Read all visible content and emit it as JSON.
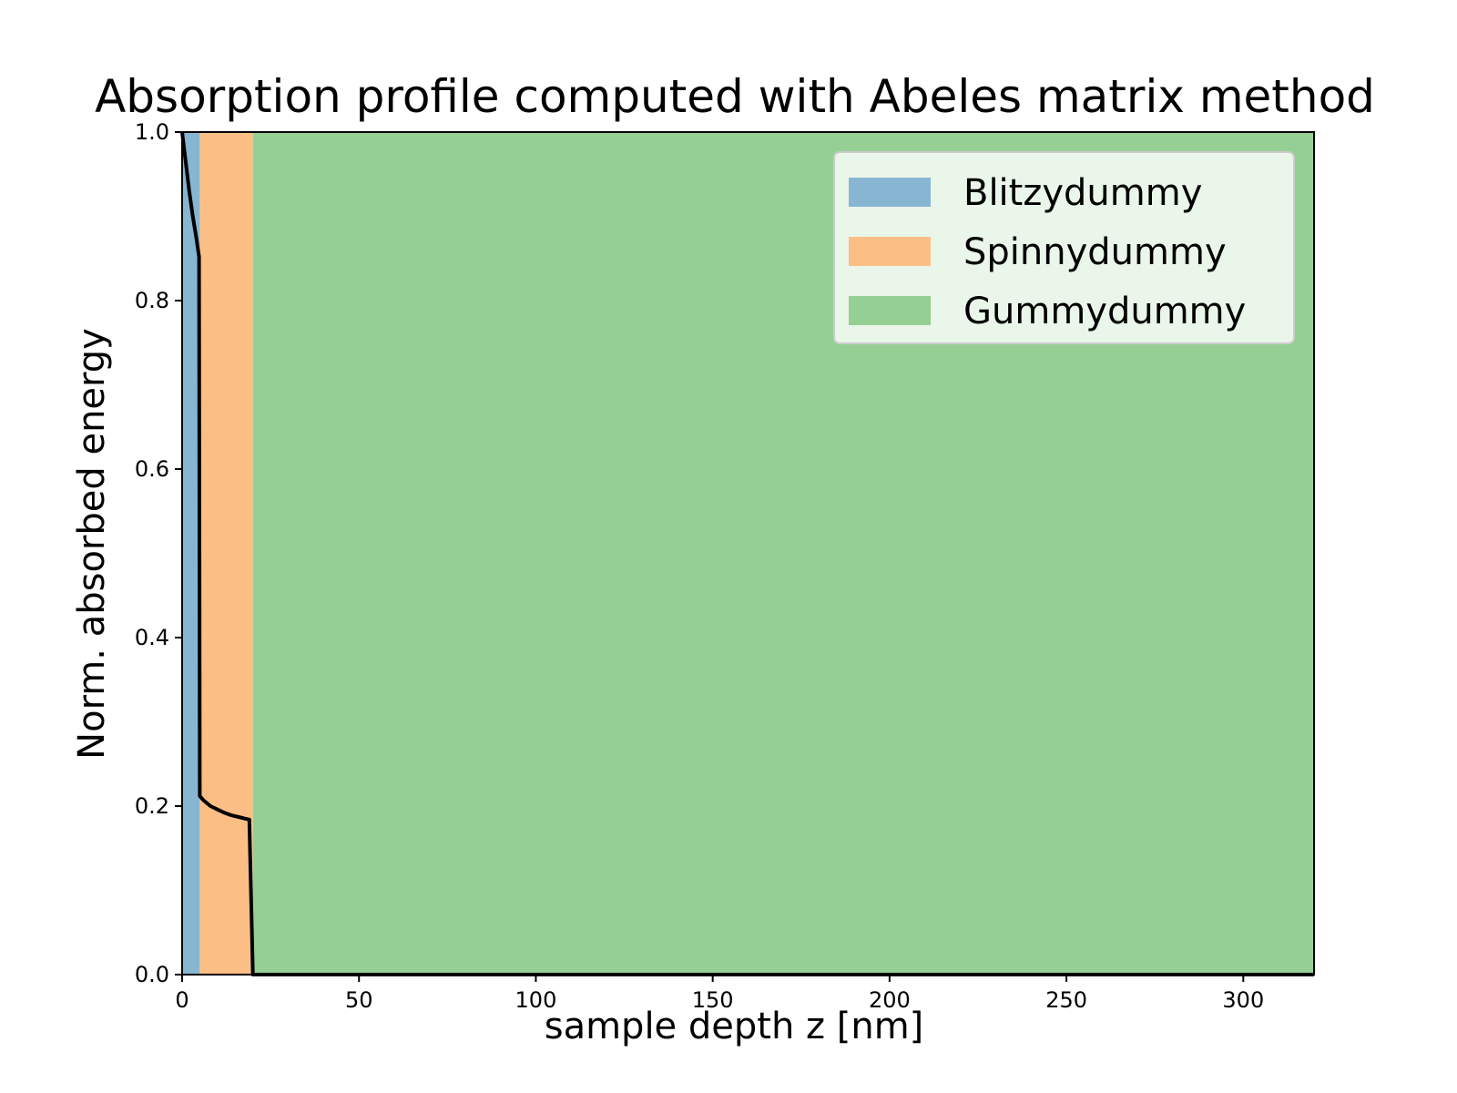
{
  "chart_data": {
    "type": "area",
    "title": "Absorption profile computed with Abeles matrix method",
    "xlabel": "sample depth z [nm]",
    "ylabel": "Norm. absorbed energy",
    "xlim": [
      0,
      320
    ],
    "ylim": [
      0,
      1.0
    ],
    "xticks": [
      0,
      50,
      100,
      150,
      200,
      250,
      300
    ],
    "yticks": [
      0.0,
      0.2,
      0.4,
      0.6,
      0.8,
      1.0
    ],
    "xtick_labels": [
      "0",
      "50",
      "100",
      "150",
      "200",
      "250",
      "300"
    ],
    "ytick_labels": [
      "0.0",
      "0.2",
      "0.4",
      "0.6",
      "0.8",
      "1.0"
    ],
    "grid": false,
    "legend_position": "top-right",
    "layers": [
      {
        "name": "Blitzydummy",
        "z_start": 0,
        "z_end": 5,
        "color": "#87b6d3"
      },
      {
        "name": "Spinnydummy",
        "z_start": 5,
        "z_end": 20,
        "color": "#fbbf86"
      },
      {
        "name": "Gummydummy",
        "z_start": 20,
        "z_end": 320,
        "color": "#96cf94"
      }
    ],
    "series": [
      {
        "color": "#000000",
        "x": [
          0,
          1,
          2,
          3,
          4,
          4.8,
          5,
          6,
          8,
          10,
          12,
          14,
          16,
          18,
          19,
          20,
          25,
          50,
          100,
          150,
          200,
          250,
          300,
          320
        ],
        "y": [
          1.0,
          0.965,
          0.93,
          0.9,
          0.875,
          0.852,
          0.212,
          0.207,
          0.2,
          0.196,
          0.192,
          0.189,
          0.187,
          0.185,
          0.184,
          0.0,
          0.0,
          0.0,
          0.0,
          0.0,
          0.0,
          0.0,
          0.0,
          0.0
        ]
      }
    ]
  }
}
